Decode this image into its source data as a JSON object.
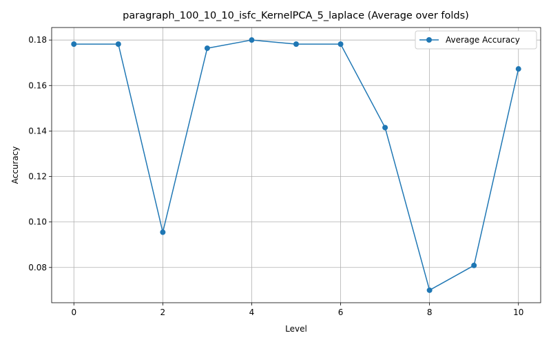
{
  "chart_data": {
    "type": "line",
    "title": "paragraph_100_10_10_isfc_KernelPCA_5_laplace (Average over folds)",
    "xlabel": "Level",
    "ylabel": "Accuracy",
    "x": [
      0,
      1,
      2,
      3,
      4,
      5,
      6,
      7,
      8,
      9,
      10
    ],
    "series": [
      {
        "name": "Average Accuracy",
        "color": "#1f77b4",
        "marker": "circle",
        "values": [
          0.1782,
          0.1782,
          0.0955,
          0.1764,
          0.18,
          0.1782,
          0.1782,
          0.1415,
          0.07,
          0.0809,
          0.1673
        ]
      }
    ],
    "xlim": [
      -0.5,
      10.5
    ],
    "ylim": [
      0.0645,
      0.1855
    ],
    "xticks": [
      0,
      2,
      4,
      6,
      8,
      10
    ],
    "xtick_labels": [
      "0",
      "2",
      "4",
      "6",
      "8",
      "10"
    ],
    "yticks": [
      0.08,
      0.1,
      0.12,
      0.14,
      0.16,
      0.18
    ],
    "ytick_labels": [
      "0.08",
      "0.10",
      "0.12",
      "0.14",
      "0.16",
      "0.18"
    ],
    "grid": true,
    "legend_position": "top-right"
  }
}
